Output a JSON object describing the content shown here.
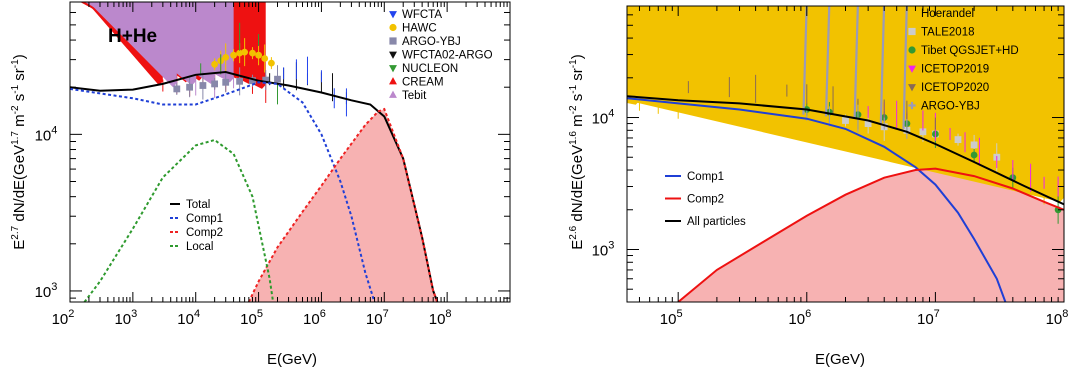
{
  "chart_data": [
    {
      "type": "line",
      "title": "H+He",
      "xlabel": "E(GeV)",
      "ylabel_main": "E",
      "ylabel_sup1": "2.7",
      "ylabel_mid": " dN/dE(GeV",
      "ylabel_sup2": "1.7",
      "ylabel_mid2": " m",
      "ylabel_sup3": "-2",
      "ylabel_mid3": " s",
      "ylabel_sup4": "-1",
      "ylabel_mid4": " sr",
      "ylabel_sup5": "-1",
      "ylabel_end": ")",
      "x_scale": "log",
      "y_scale": "log",
      "xlim": [
        100,
        1000000000
      ],
      "ylim": [
        850,
        70000
      ],
      "x_ticks": [
        {
          "v": 100,
          "base": "10",
          "exp": "2"
        },
        {
          "v": 1000,
          "base": "10",
          "exp": "3"
        },
        {
          "v": 10000,
          "base": "10",
          "exp": "4"
        },
        {
          "v": 100000,
          "base": "10",
          "exp": "5"
        },
        {
          "v": 1000000,
          "base": "10",
          "exp": "6"
        },
        {
          "v": 10000000,
          "base": "10",
          "exp": "7"
        },
        {
          "v": 100000000,
          "base": "10",
          "exp": "8"
        }
      ],
      "y_ticks": [
        {
          "v": 1000,
          "base": "10",
          "exp": "3"
        },
        {
          "v": 10000,
          "base": "10",
          "exp": "4"
        }
      ],
      "legend_top_right": [
        {
          "name": "WFCTA",
          "color": "#2244ee",
          "marker": "tri-down"
        },
        {
          "name": "HAWC",
          "color": "#f2c200",
          "marker": "circle"
        },
        {
          "name": "ARGO-YBJ",
          "color": "#8888aa",
          "marker": "square"
        },
        {
          "name": "WFCTA02-ARGO",
          "color": "#111111",
          "marker": "tri-down"
        },
        {
          "name": "NUCLEON",
          "color": "#339933",
          "marker": "tri-down"
        },
        {
          "name": "CREAM",
          "color": "#ee1111",
          "marker": "tri-up"
        },
        {
          "name": "Tebit",
          "color": "#bb88cc",
          "marker": "tri-up"
        }
      ],
      "legend_bottom_left": [
        {
          "name": "Total",
          "color": "#000000",
          "dash": false
        },
        {
          "name": "Comp1",
          "color": "#1f3fd6",
          "dash": true
        },
        {
          "name": "Comp2",
          "color": "#ee2222",
          "dash": true
        },
        {
          "name": "Local",
          "color": "#2e9a2e",
          "dash": true
        }
      ],
      "series": [
        {
          "name": "Total",
          "color": "#000000",
          "dash": false,
          "x": [
            100,
            300,
            1000,
            3000,
            10000,
            30000,
            100000,
            300000,
            1000000,
            3000000,
            6000000,
            10000000,
            20000000,
            40000000,
            60000000,
            70000000
          ],
          "y": [
            20000,
            19000,
            19300,
            21000,
            24000,
            25000,
            22000,
            20500,
            18500,
            16500,
            15500,
            13000,
            7000,
            2200,
            1000,
            850
          ]
        },
        {
          "name": "Comp1",
          "color": "#1f3fd6",
          "dash": true,
          "x": [
            100,
            1000,
            3000,
            10000,
            30000,
            100000,
            200000,
            500000,
            1000000,
            2000000,
            3000000,
            5000000,
            7000000
          ],
          "y": [
            19500,
            17000,
            15500,
            15500,
            18000,
            21500,
            21000,
            16000,
            10000,
            5000,
            3000,
            1300,
            850
          ]
        },
        {
          "name": "Comp2",
          "color": "#ee2222",
          "dash": true,
          "fill": "#f7b2b2",
          "x": [
            70000,
            100000,
            200000,
            500000,
            1000000,
            2000000,
            5000000,
            8000000,
            10000000,
            20000000,
            40000000,
            60000000,
            70000000
          ],
          "y": [
            850,
            1150,
            1900,
            3200,
            4700,
            7000,
            11500,
            14000,
            14500,
            7000,
            2200,
            1000,
            850
          ]
        },
        {
          "name": "Local",
          "color": "#2e9a2e",
          "dash": true,
          "x": [
            170,
            300,
            1000,
            3000,
            10000,
            20000,
            40000,
            80000,
            150000,
            170000
          ],
          "y": [
            850,
            1150,
            2500,
            5300,
            8500,
            9200,
            7500,
            4000,
            1200,
            850
          ]
        }
      ],
      "points": [
        {
          "name": "CREAM",
          "x": [
            3000,
            5000,
            8000,
            13000,
            20000,
            30000,
            50000,
            80000,
            130000
          ],
          "y": [
            20500,
            21000,
            21500,
            22000,
            22500,
            23000,
            22800,
            21000,
            19500
          ]
        },
        {
          "name": "Tebit",
          "x": [
            5000,
            10000,
            20000,
            40000
          ],
          "y": [
            20000,
            20500,
            21000,
            21500
          ]
        },
        {
          "name": "ARGO-YBJ",
          "x": [
            5000,
            8000,
            13000,
            20000,
            30000,
            50000,
            80000,
            130000,
            200000
          ],
          "y": [
            19500,
            20000,
            20500,
            21000,
            21500,
            21800,
            22000,
            22200,
            22500
          ]
        },
        {
          "name": "HAWC",
          "x": [
            20000,
            25000,
            30000,
            40000,
            50000,
            60000,
            80000,
            100000,
            125000,
            160000
          ],
          "y": [
            28000,
            29500,
            31000,
            32000,
            33000,
            33500,
            33000,
            32000,
            30500,
            28500
          ]
        },
        {
          "name": "NUCLEON",
          "x": [
            12000,
            25000,
            50000,
            100000,
            200000
          ],
          "y": [
            26000,
            28000,
            42000,
            40000,
            18000
          ]
        },
        {
          "name": "WFCTA02-ARGO",
          "x": [
            150000,
            250000,
            400000,
            600000,
            1000000,
            1500000,
            2500000
          ],
          "y": [
            22500,
            23000,
            23500,
            22500,
            21500,
            20000,
            17000
          ]
        },
        {
          "name": "WFCTA",
          "x": [
            250000,
            400000,
            600000,
            1000000,
            1600000,
            2500000
          ],
          "y": [
            24500,
            26000,
            25500,
            23500,
            17000,
            16000
          ]
        }
      ]
    },
    {
      "type": "line",
      "title": "",
      "xlabel": "E(GeV)",
      "ylabel_main": "E",
      "ylabel_sup1": "2.6",
      "ylabel_mid": " dN/dE(GeV",
      "ylabel_sup2": "1.6",
      "ylabel_mid2": " m",
      "ylabel_sup3": "-2",
      "ylabel_mid3": " s",
      "ylabel_sup4": "-1",
      "ylabel_mid4": " sr",
      "ylabel_sup5": "-1",
      "ylabel_end": ")",
      "x_scale": "log",
      "y_scale": "log",
      "xlim": [
        40000,
        100000000
      ],
      "ylim": [
        400,
        70000
      ],
      "x_ticks": [
        {
          "v": 100000,
          "base": "10",
          "exp": "5"
        },
        {
          "v": 1000000,
          "base": "10",
          "exp": "6"
        },
        {
          "v": 10000000,
          "base": "10",
          "exp": "7"
        },
        {
          "v": 100000000,
          "base": "10",
          "exp": "8"
        }
      ],
      "y_ticks": [
        {
          "v": 1000,
          "base": "10",
          "exp": "3"
        },
        {
          "v": 10000,
          "base": "10",
          "exp": "4"
        }
      ],
      "legend_top_right": [
        {
          "name": "Hoerandel",
          "color": "#f2c200",
          "marker": "tri-up"
        },
        {
          "name": "TALE2018",
          "color": "#cccccc",
          "marker": "square"
        },
        {
          "name": "Tibet QGSJET+HD",
          "color": "#339933",
          "marker": "circle"
        },
        {
          "name": "ICETOP2019",
          "color": "#ee22ee",
          "marker": "tri-down"
        },
        {
          "name": "ICETOP2020",
          "color": "#8a6a55",
          "marker": "tri-down"
        },
        {
          "name": "ARGO-YBJ",
          "color": "#9a9ab8",
          "marker": "cross"
        }
      ],
      "legend_bottom_left": [
        {
          "name": "Comp1",
          "color": "#1f3fd6",
          "dash": false
        },
        {
          "name": "Comp2",
          "color": "#ee1111",
          "dash": false
        },
        {
          "name": "All particles",
          "color": "#000000",
          "dash": false
        }
      ],
      "series": [
        {
          "name": "All particles",
          "color": "#000000",
          "dash": false,
          "x": [
            40000,
            100000,
            300000,
            1000000,
            3000000,
            6000000,
            10000000,
            20000000,
            50000000,
            100000000
          ],
          "y": [
            14500,
            13500,
            12800,
            11500,
            9500,
            7800,
            6300,
            4600,
            3000,
            2200
          ]
        },
        {
          "name": "Comp1",
          "color": "#1f3fd6",
          "dash": false,
          "x": [
            40000,
            100000,
            300000,
            1000000,
            2000000,
            4000000,
            7000000,
            10000000,
            15000000,
            20000000,
            30000000,
            35000000
          ],
          "y": [
            14000,
            12800,
            11500,
            9800,
            8200,
            6000,
            4200,
            3100,
            1900,
            1200,
            600,
            400
          ]
        },
        {
          "name": "Comp2",
          "color": "#ee1111",
          "dash": false,
          "fill": "#f7b2b2",
          "x": [
            100000,
            200000,
            500000,
            1000000,
            2000000,
            4000000,
            7000000,
            10000000,
            20000000,
            40000000,
            70000000,
            100000000
          ],
          "y": [
            400,
            700,
            1200,
            1800,
            2600,
            3500,
            4000,
            4100,
            3600,
            2900,
            2300,
            2000
          ]
        }
      ],
      "points": [
        {
          "name": "Hoerandel",
          "x": [
            50000,
            70000,
            100000,
            150000,
            200000,
            300000,
            500000,
            700000,
            1000000,
            1500000,
            2000000,
            3000000,
            4000000,
            5000000,
            7000000,
            10000000,
            15000000,
            20000000,
            30000000,
            50000000,
            70000000,
            100000000
          ],
          "y": [
            12500,
            12700,
            12500,
            12300,
            12000,
            11800,
            11500,
            11200,
            11000,
            10500,
            10000,
            9500,
            9000,
            8500,
            7500,
            6800,
            5800,
            5000,
            4200,
            3300,
            2800,
            2300
          ]
        },
        {
          "name": "TALE2018",
          "x": [
            2000000,
            3000000,
            4000000,
            6000000,
            8000000,
            10000000,
            15000000,
            20000000,
            30000000
          ],
          "y": [
            9500,
            9000,
            8500,
            8000,
            7800,
            7500,
            6800,
            6200,
            5000
          ]
        },
        {
          "name": "Tibet QGSJET+HD",
          "x": [
            1000000,
            1500000,
            2500000,
            4000000,
            6000000,
            10000000,
            20000000,
            40000000,
            90000000
          ],
          "y": [
            11500,
            11000,
            10500,
            10000,
            9000,
            7500,
            5200,
            3500,
            2000
          ]
        },
        {
          "name": "ICETOP2019",
          "x": [
            3000000,
            4000000,
            5000000,
            6000000,
            8000000,
            10000000,
            13000000,
            17000000,
            22000000,
            30000000,
            40000000,
            55000000,
            70000000,
            90000000
          ],
          "y": [
            11000,
            11000,
            10500,
            10000,
            9500,
            8500,
            7500,
            6500,
            5500,
            4600,
            4000,
            3500,
            3200,
            3000
          ]
        },
        {
          "name": "ICETOP2020",
          "x": [
            120000,
            250000,
            400000,
            700000,
            1000000,
            1600000,
            2500000,
            4000000,
            6000000,
            10000000
          ],
          "y": [
            17000,
            17000,
            16500,
            16000,
            15000,
            13500,
            12500,
            11500,
            10500,
            9000
          ]
        },
        {
          "name": "ARGO-YBJ",
          "x": [
            1000000,
            1500000,
            2500000,
            4000000,
            6000000
          ],
          "y": [
            10500,
            10200,
            9800,
            9000,
            8200
          ]
        }
      ]
    }
  ]
}
